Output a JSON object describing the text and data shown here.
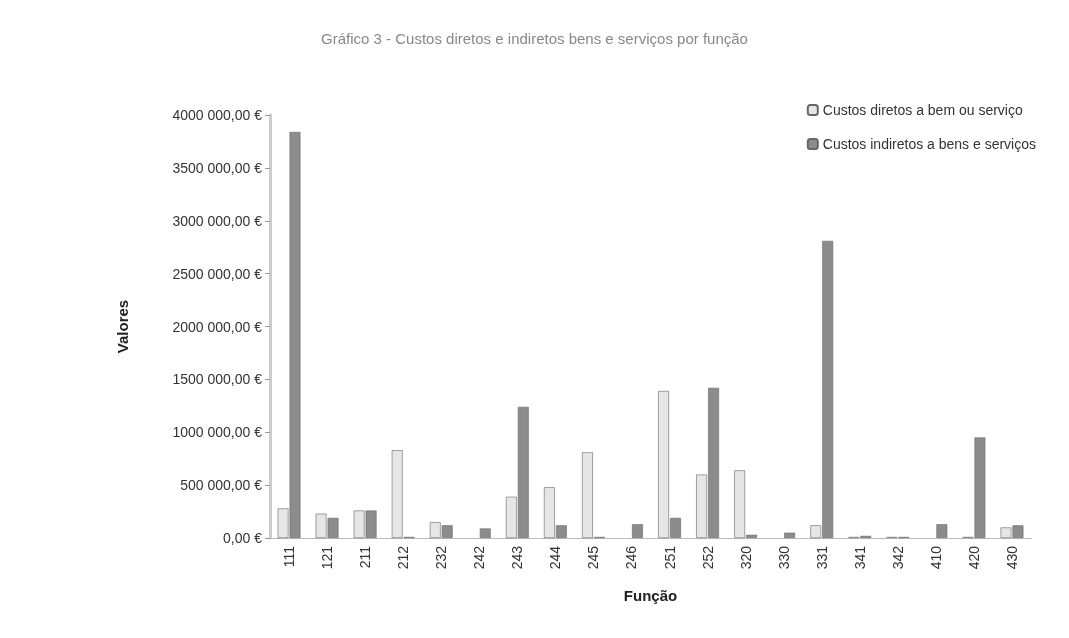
{
  "chart_data": {
    "type": "bar",
    "title": "Gráfico 3 - Custos diretos e indiretos bens e serviços por função",
    "xlabel": "Função",
    "ylabel": "Valores",
    "categories": [
      "111",
      "121",
      "211",
      "212",
      "232",
      "242",
      "243",
      "244",
      "245",
      "246",
      "251",
      "252",
      "320",
      "330",
      "331",
      "341",
      "342",
      "410",
      "420",
      "430"
    ],
    "series": [
      {
        "name": "Custos diretos a bem ou serviço",
        "color": "#e6e6e6",
        "values": [
          280000,
          230000,
          260000,
          830000,
          150000,
          0,
          390000,
          480000,
          810000,
          0,
          1390000,
          600000,
          640000,
          0,
          120000,
          10000,
          10000,
          0,
          10000,
          100000
        ]
      },
      {
        "name": "Custos indiretos a bens e serviços",
        "color": "#8c8c8c",
        "values": [
          3840000,
          190000,
          260000,
          10000,
          120000,
          90000,
          1240000,
          120000,
          10000,
          130000,
          190000,
          1420000,
          30000,
          50000,
          2810000,
          20000,
          10000,
          130000,
          950000,
          120000
        ]
      }
    ],
    "ylim": [
      0,
      4000000
    ],
    "yticks": [
      {
        "value": 0,
        "label": "0,00 €"
      },
      {
        "value": 500000,
        "label": "500 000,00 €"
      },
      {
        "value": 1000000,
        "label": "1000 000,00 €"
      },
      {
        "value": 1500000,
        "label": "1500 000,00 €"
      },
      {
        "value": 2000000,
        "label": "2000 000,00 €"
      },
      {
        "value": 2500000,
        "label": "2500 000,00 €"
      },
      {
        "value": 3000000,
        "label": "3000 000,00 €"
      },
      {
        "value": 3500000,
        "label": "3500 000,00 €"
      },
      {
        "value": 4000000,
        "label": "4000 000,00 €"
      }
    ],
    "grid": false,
    "legend": "top right"
  }
}
